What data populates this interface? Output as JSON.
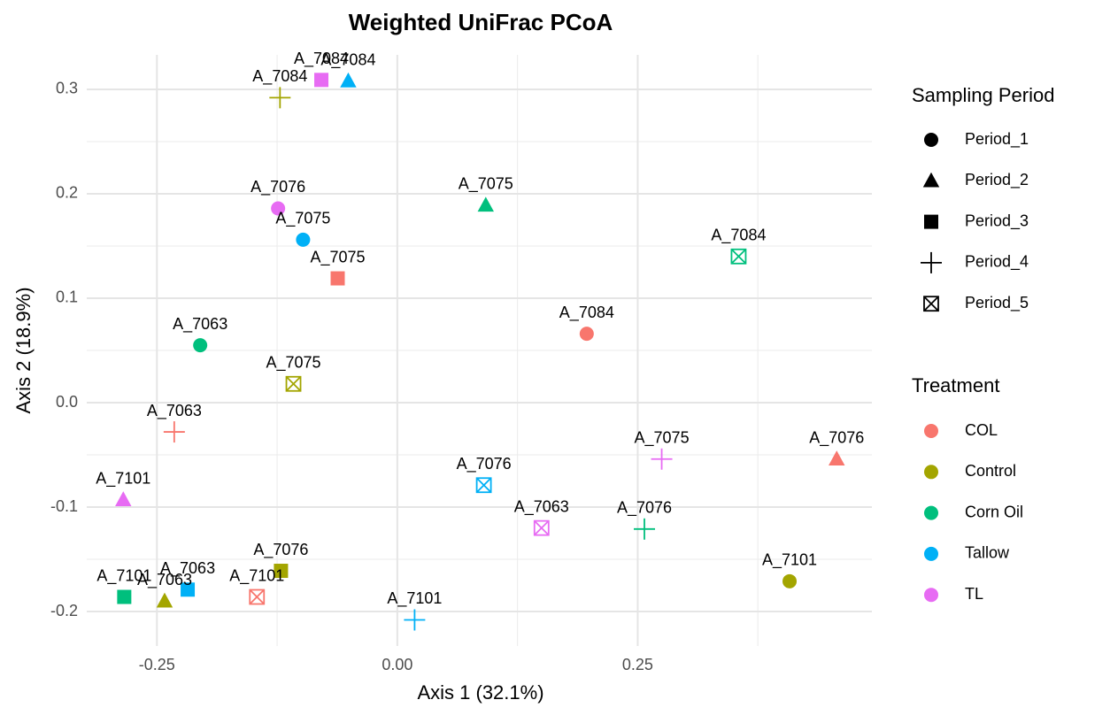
{
  "chart_data": {
    "type": "scatter",
    "title": "Weighted UniFrac PCoA",
    "x_label": "Axis 1 (32.1%)",
    "y_label": "Axis 2 (18.9%)",
    "xlim": [
      -0.323,
      0.4936
    ],
    "ylim": [
      -0.233,
      0.333
    ],
    "xticks": [
      -0.25,
      {
        "value": 0,
        "label": "0.00"
      },
      0.25
    ],
    "yticks": [
      0.3,
      0.2,
      0.1,
      {
        "value": 0,
        "label": "0.0"
      },
      -0.1,
      -0.2
    ],
    "x_minor_ticks": [
      -0.125,
      0.125,
      0.375
    ],
    "y_minor_ticks": [
      0.25,
      0.15,
      0.05,
      -0.05,
      -0.15
    ],
    "grid": true,
    "x": [
      -0.079,
      -0.051,
      -0.122,
      -0.124,
      -0.098,
      -0.062,
      0.092,
      0.355,
      0.197,
      -0.205,
      -0.108,
      -0.232,
      -0.285,
      0.09,
      0.275,
      0.457,
      0.15,
      0.257,
      0.408,
      -0.121,
      -0.284,
      -0.218,
      -0.242,
      -0.146,
      0.018
    ],
    "y": [
      0.309,
      0.308,
      0.292,
      0.186,
      0.156,
      0.119,
      0.189,
      0.14,
      0.066,
      0.055,
      0.018,
      -0.028,
      -0.093,
      -0.079,
      -0.054,
      -0.054,
      -0.12,
      -0.121,
      -0.171,
      -0.161,
      -0.186,
      -0.179,
      -0.19,
      -0.186,
      -0.208
    ],
    "labels": [
      "A_7084",
      "A_7084",
      "A_7084",
      "A_7076",
      "A_7075",
      "A_7075",
      "A_7075",
      "A_7084",
      "A_7084",
      "A_7063",
      "A_7075",
      "A_7063",
      "A_7101",
      "A_7076",
      "A_7075",
      "A_7076",
      "A_7063",
      "A_7076",
      "A_7101",
      "A_7076",
      "A_7101",
      "A_7063",
      "A_7063",
      "A_7101",
      "A_7101"
    ],
    "treatment": [
      "TL",
      "Tallow",
      "Control",
      "TL",
      "Tallow",
      "COL",
      "Corn Oil",
      "Corn Oil",
      "COL",
      "Corn Oil",
      "Control",
      "COL",
      "TL",
      "Tallow",
      "TL",
      "COL",
      "TL",
      "Corn Oil",
      "Control",
      "Control",
      "Corn Oil",
      "Tallow",
      "Control",
      "COL",
      "Tallow"
    ],
    "period": [
      "Period_3",
      "Period_2",
      "Period_4",
      "Period_1",
      "Period_1",
      "Period_3",
      "Period_2",
      "Period_5",
      "Period_1",
      "Period_1",
      "Period_5",
      "Period_4",
      "Period_2",
      "Period_5",
      "Period_4",
      "Period_2",
      "Period_5",
      "Period_4",
      "Period_1",
      "Period_3",
      "Period_3",
      "Period_3",
      "Period_2",
      "Period_5",
      "Period_4"
    ],
    "shape_legend": {
      "title": "Sampling Period",
      "entries": [
        {
          "name": "Period_1",
          "shape": "circle"
        },
        {
          "name": "Period_2",
          "shape": "triangle"
        },
        {
          "name": "Period_3",
          "shape": "square"
        },
        {
          "name": "Period_4",
          "shape": "plus"
        },
        {
          "name": "Period_5",
          "shape": "square-x"
        }
      ]
    },
    "color_legend": {
      "title": "Treatment",
      "entries": [
        {
          "name": "COL",
          "color": "#F8766D"
        },
        {
          "name": "Control",
          "color": "#A3A500"
        },
        {
          "name": "Corn Oil",
          "color": "#00BF7D"
        },
        {
          "name": "Tallow",
          "color": "#00B0F6"
        },
        {
          "name": "TL",
          "color": "#E76BF3"
        }
      ]
    }
  }
}
